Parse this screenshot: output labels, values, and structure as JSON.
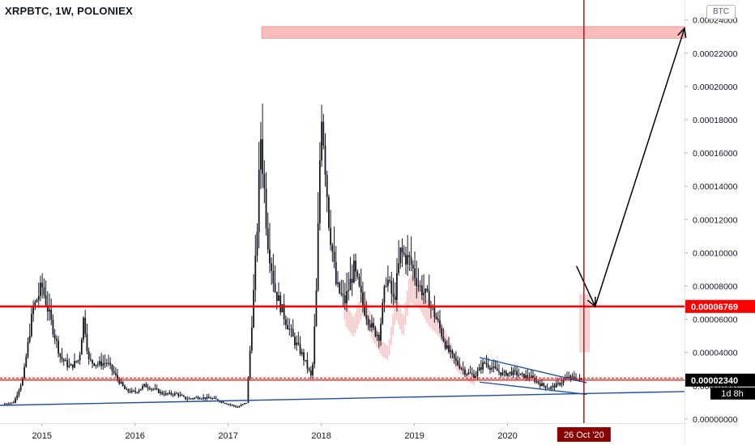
{
  "title": "XRPBTC, 1W, POLONIEX",
  "unit": "BTC",
  "colors": {
    "background": "#ffffff",
    "candle": "#131722",
    "ghost_candle": "#f5c4c4",
    "resistance": "#ff0000",
    "zone_fill": "#f5a5a5",
    "trendline": "#1e4fa0",
    "pointer_arrow": "#000000",
    "date_marker": "#8b0000"
  },
  "chart_data": {
    "type": "candlestick",
    "series_name": "XRPBTC",
    "timeframe": "1W",
    "exchange": "POLONIEX",
    "x_axis": {
      "tick_labels": [
        "2015",
        "2016",
        "2017",
        "2018",
        "2019",
        "2020"
      ],
      "range": [
        2014.55,
        2021.9
      ]
    },
    "y_axis": {
      "tick_labels": [
        "0.00000000",
        "0.00002000",
        "0.00004000",
        "0.00006000",
        "0.00008000",
        "0.00010000",
        "0.00012000",
        "0.00014000",
        "0.00016000",
        "0.00018000",
        "0.00020000",
        "0.00022000",
        "0.00024000"
      ],
      "ylim": [
        -2.5e-06,
        0.000252
      ],
      "position": "right"
    },
    "price_labels": [
      {
        "text": "0.00006769",
        "value": 6.769e-05
      },
      {
        "text": "0.00002340",
        "value": 2.34e-05,
        "countdown": "1d 8h"
      }
    ],
    "date_marker": {
      "text": "26 Oct '20",
      "x": 2020.82
    },
    "horizontal_levels": [
      6.769e-05,
      2.34e-05,
      2.46e-05
    ],
    "resistance_zone": {
      "y_from": 0.000229,
      "y_to": 0.000236,
      "x_from": 2017.36,
      "x_to": 2021.9
    },
    "trendline_support": {
      "points": [
        [
          2014.55,
          8.2e-06
        ],
        [
          2021.9,
          1.65e-05
        ]
      ]
    },
    "triangle_pattern": {
      "upper": [
        [
          2019.7,
          3.7e-05
        ],
        [
          2020.85,
          2.18e-05
        ]
      ],
      "lower": [
        [
          2019.7,
          2.22e-05
        ],
        [
          2020.85,
          1.48e-05
        ]
      ]
    },
    "projection_arrow": {
      "points": [
        [
          2020.74,
          9.2e-05
        ],
        [
          2020.94,
          6.77e-05
        ],
        [
          2021.9,
          0.000235
        ]
      ]
    },
    "weekly_price": [
      [
        2014.6,
        9e-06
      ],
      [
        2014.7,
        1e-05
      ],
      [
        2014.8,
        2.5e-05
      ],
      [
        2014.9,
        6.5e-05
      ],
      [
        2015.0,
        8e-05
      ],
      [
        2015.1,
        5.8e-05
      ],
      [
        2015.2,
        3.7e-05
      ],
      [
        2015.3,
        3.1e-05
      ],
      [
        2015.4,
        3.6e-05
      ],
      [
        2015.45,
        6.2e-05
      ],
      [
        2015.5,
        3.5e-05
      ],
      [
        2015.6,
        3.3e-05
      ],
      [
        2015.7,
        3.4e-05
      ],
      [
        2015.8,
        2.5e-05
      ],
      [
        2015.9,
        1.7e-05
      ],
      [
        2016.0,
        1.6e-05
      ],
      [
        2016.1,
        2e-05
      ],
      [
        2016.2,
        1.8e-05
      ],
      [
        2016.3,
        1.5e-05
      ],
      [
        2016.45,
        1.5e-05
      ],
      [
        2016.55,
        1.2e-05
      ],
      [
        2016.7,
        1.3e-05
      ],
      [
        2016.85,
        1.2e-05
      ],
      [
        2017.0,
        9e-06
      ],
      [
        2017.1,
        7e-06
      ],
      [
        2017.2,
        1e-05
      ],
      [
        2017.25,
        5.5e-05
      ],
      [
        2017.3,
        0.0001
      ],
      [
        2017.35,
        0.00017
      ],
      [
        2017.42,
        0.00011
      ],
      [
        2017.5,
        7.8e-05
      ],
      [
        2017.6,
        6.2e-05
      ],
      [
        2017.7,
        4.8e-05
      ],
      [
        2017.8,
        3.8e-05
      ],
      [
        2017.9,
        2.4e-05
      ],
      [
        2017.95,
        8e-05
      ],
      [
        2018.0,
        0.00019
      ],
      [
        2018.08,
        0.00012
      ],
      [
        2018.16,
        8e-05
      ],
      [
        2018.25,
        7e-05
      ],
      [
        2018.35,
        9e-05
      ],
      [
        2018.45,
        6.8e-05
      ],
      [
        2018.55,
        5.4e-05
      ],
      [
        2018.62,
        5e-05
      ],
      [
        2018.7,
        8.6e-05
      ],
      [
        2018.78,
        7e-05
      ],
      [
        2018.85,
        0.0001
      ],
      [
        2018.95,
        9.5e-05
      ],
      [
        2019.05,
        8e-05
      ],
      [
        2019.15,
        7.2e-05
      ],
      [
        2019.25,
        5.8e-05
      ],
      [
        2019.35,
        4.2e-05
      ],
      [
        2019.45,
        3.4e-05
      ],
      [
        2019.55,
        2.8e-05
      ],
      [
        2019.65,
        2.6e-05
      ],
      [
        2019.75,
        3.4e-05
      ],
      [
        2019.85,
        3e-05
      ],
      [
        2019.95,
        2.7e-05
      ],
      [
        2020.05,
        2.8e-05
      ],
      [
        2020.15,
        2.6e-05
      ],
      [
        2020.25,
        2.5e-05
      ],
      [
        2020.35,
        2.1e-05
      ],
      [
        2020.45,
        1.85e-05
      ],
      [
        2020.55,
        2.1e-05
      ],
      [
        2020.65,
        2.5e-05
      ],
      [
        2020.72,
        2.45e-05
      ],
      [
        2020.8,
        2.34e-05
      ]
    ]
  }
}
